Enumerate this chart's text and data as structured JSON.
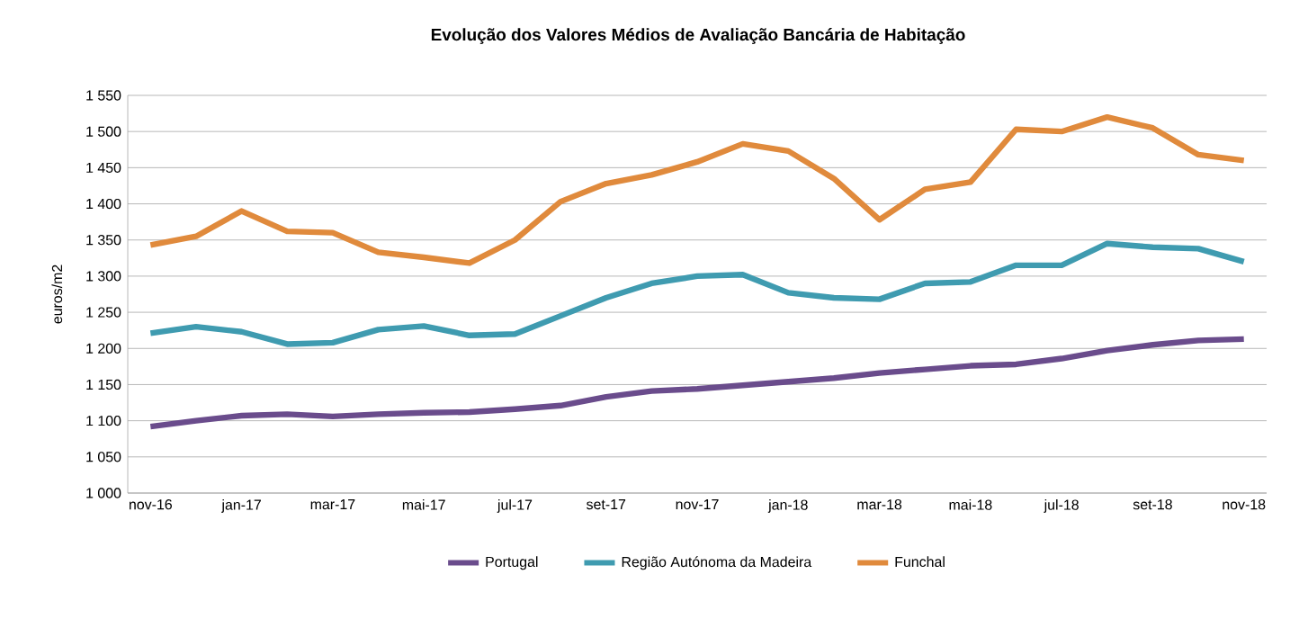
{
  "chart_data": {
    "type": "line",
    "title": "Evolução dos Valores Médios de Avaliação Bancária de Habitação",
    "ylabel": "euros/m2",
    "categories": [
      "nov-16",
      null,
      "jan-17",
      null,
      "mar-17",
      null,
      "mai-17",
      null,
      "jul-17",
      null,
      "set-17",
      null,
      "nov-17",
      null,
      "jan-18",
      null,
      "mar-18",
      null,
      "mai-18",
      null,
      "jul-18",
      null,
      "set-18",
      null,
      "nov-18"
    ],
    "series": [
      {
        "name": "Portugal",
        "color": "#6a4c8c",
        "values": [
          1092,
          1100,
          1107,
          1109,
          1106,
          1109,
          1111,
          1112,
          1116,
          1121,
          1133,
          1141,
          1144,
          1149,
          1154,
          1159,
          1166,
          1171,
          1176,
          1178,
          1186,
          1197,
          1205,
          1211,
          1213
        ]
      },
      {
        "name": "Região Autónoma da Madeira",
        "color": "#3f9bb0",
        "values": [
          1221,
          1230,
          1223,
          1206,
          1208,
          1226,
          1231,
          1218,
          1220,
          1245,
          1270,
          1290,
          1300,
          1302,
          1277,
          1270,
          1268,
          1290,
          1292,
          1315,
          1315,
          1345,
          1340,
          1338,
          1320
        ]
      },
      {
        "name": "Funchal",
        "color": "#e08a3c",
        "values": [
          1343,
          1355,
          1390,
          1362,
          1360,
          1333,
          1326,
          1318,
          1350,
          1403,
          1428,
          1440,
          1458,
          1483,
          1473,
          1435,
          1378,
          1420,
          1430,
          1503,
          1500,
          1520,
          1505,
          1468,
          1460
        ]
      }
    ],
    "ylim": [
      1000,
      1550
    ],
    "yticks": [
      {
        "value": 1000,
        "label": "1 000"
      },
      {
        "value": 1050,
        "label": "1 050"
      },
      {
        "value": 1100,
        "label": "1 100"
      },
      {
        "value": 1150,
        "label": "1 150"
      },
      {
        "value": 1200,
        "label": "1 200"
      },
      {
        "value": 1250,
        "label": "1 250"
      },
      {
        "value": 1300,
        "label": "1 300"
      },
      {
        "value": 1350,
        "label": "1 350"
      },
      {
        "value": 1400,
        "label": "1 400"
      },
      {
        "value": 1450,
        "label": "1 450"
      },
      {
        "value": 1500,
        "label": "1 500"
      },
      {
        "value": 1550,
        "label": "1 550"
      }
    ],
    "grid": "y",
    "legend": "bottom",
    "marker": "none",
    "line_style": "solid"
  }
}
